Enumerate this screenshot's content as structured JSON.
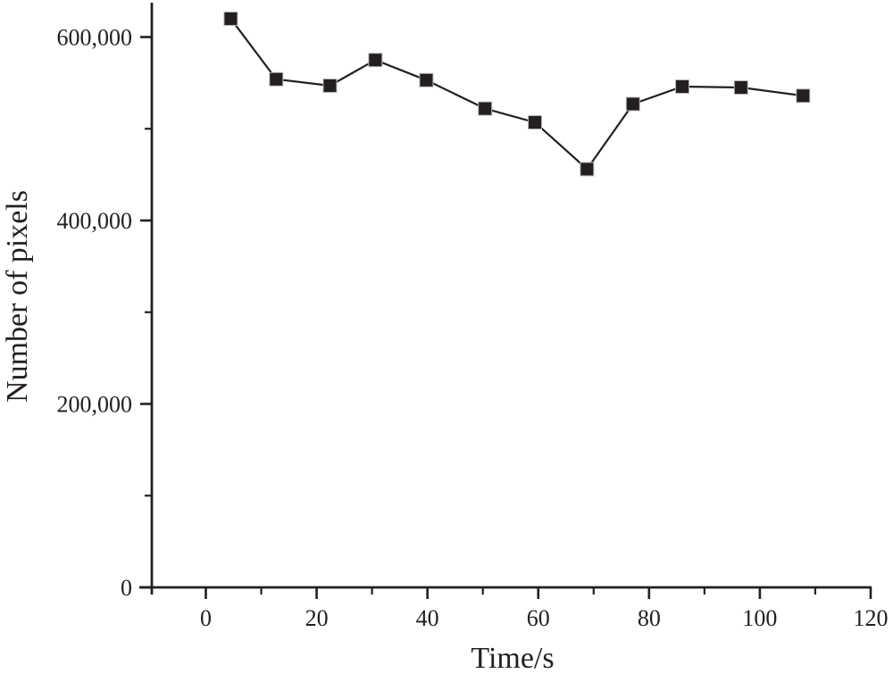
{
  "figure": {
    "background": "#ffffff",
    "ink_color": "#231f20",
    "marker_edge_color": "#b8b8b8"
  },
  "chart_data": {
    "type": "line",
    "title": "",
    "xlabel": "Time/s",
    "ylabel": "Number of pixels",
    "grid": false,
    "legend": "none",
    "xlim": [
      -10,
      120
    ],
    "ylim": [
      0,
      637000
    ],
    "x_major_ticks": [
      0,
      20,
      40,
      60,
      80,
      100,
      120
    ],
    "x_minor_ticks": [
      10,
      30,
      50,
      70,
      90,
      110
    ],
    "x_tick_labels": [
      "0",
      "20",
      "40",
      "60",
      "80",
      "100",
      "120"
    ],
    "y_major_ticks": [
      0,
      200000,
      400000,
      600000
    ],
    "y_minor_ticks": [
      100000,
      300000,
      500000
    ],
    "y_tick_labels": [
      "0",
      "200,000",
      "400,000",
      "600,000"
    ],
    "series": [
      {
        "name": "Number of pixels",
        "marker": "filled-square",
        "x": [
          4.5,
          12.7,
          22.4,
          30.6,
          39.8,
          50.4,
          59.4,
          68.8,
          77.1,
          86.0,
          96.6,
          107.8
        ],
        "y": [
          620000,
          554000,
          547000,
          575000,
          553000,
          522000,
          507000,
          456000,
          527000,
          546000,
          545000,
          536000
        ]
      }
    ]
  }
}
